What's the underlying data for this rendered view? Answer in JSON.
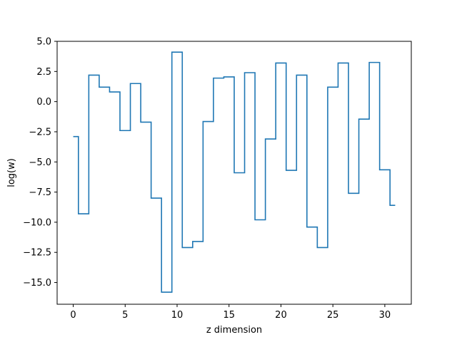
{
  "chart_data": {
    "type": "line",
    "step": "mid",
    "title": "",
    "xlabel": "z dimension",
    "ylabel": "log(w)",
    "xlim": [
      -1.55,
      32.55
    ],
    "ylim": [
      -16.8,
      5.0
    ],
    "xticks": [
      0,
      5,
      10,
      15,
      20,
      25,
      30
    ],
    "xtick_labels": [
      "0",
      "5",
      "10",
      "15",
      "20",
      "25",
      "30"
    ],
    "yticks": [
      5.0,
      2.5,
      0.0,
      -2.5,
      -5.0,
      -7.5,
      -10.0,
      -12.5,
      -15.0
    ],
    "ytick_labels": [
      "5.0",
      "2.5",
      "0.0",
      "−2.5",
      "−5.0",
      "−7.5",
      "−10.0",
      "−12.5",
      "−15.0"
    ],
    "grid": false,
    "series": [
      {
        "color": "#1f77b4",
        "x": [
          0,
          1,
          2,
          3,
          4,
          5,
          6,
          7,
          8,
          9,
          10,
          11,
          12,
          13,
          14,
          15,
          16,
          17,
          18,
          19,
          20,
          21,
          22,
          23,
          24,
          25,
          26,
          27,
          28,
          29,
          30,
          31
        ],
        "y": [
          -2.9,
          -9.3,
          2.2,
          1.2,
          0.8,
          -2.4,
          1.5,
          -1.7,
          -8.0,
          -15.8,
          4.1,
          -12.1,
          -11.6,
          -1.65,
          1.95,
          2.05,
          -5.9,
          2.4,
          -9.8,
          -3.1,
          3.2,
          -5.7,
          2.2,
          -10.4,
          -12.1,
          1.2,
          3.2,
          -7.6,
          -1.45,
          3.25,
          -5.65,
          -8.6
        ]
      }
    ]
  }
}
